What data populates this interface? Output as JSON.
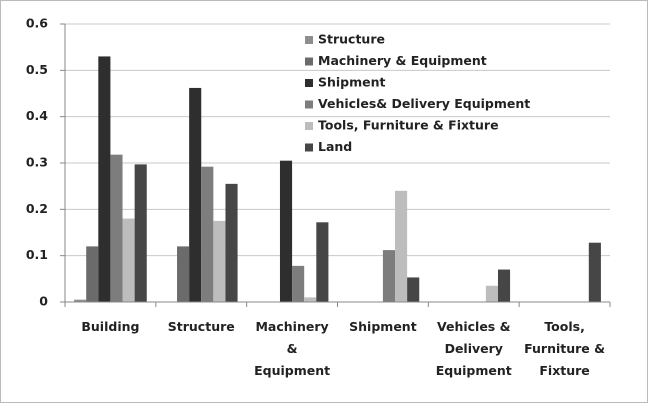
{
  "chart_data": {
    "type": "bar",
    "categories": [
      "Building",
      "Structure",
      "Machinery\n&\nEquipment",
      "Shipment",
      "Vehicles &\nDelivery\nEquipment",
      "Tools,\nFurniture &\nFixture"
    ],
    "series": [
      {
        "name": "Structure",
        "color": "#8e8e8e",
        "values": [
          0.005,
          0,
          0,
          0,
          0,
          0
        ]
      },
      {
        "name": "Machinery & Equipment",
        "color": "#6b6b6b",
        "values": [
          0.12,
          0.12,
          0,
          0,
          0,
          0
        ]
      },
      {
        "name": "Shipment",
        "color": "#2e2e2e",
        "values": [
          0.53,
          0.462,
          0.305,
          0,
          0,
          0
        ]
      },
      {
        "name": "Vehicles& Delivery Equipment",
        "color": "#7d7d7d",
        "values": [
          0.318,
          0.292,
          0.078,
          0.112,
          0,
          0
        ]
      },
      {
        "name": "Tools, Furniture & Fixture",
        "color": "#bdbdbd",
        "values": [
          0.18,
          0.175,
          0.01,
          0.24,
          0.035,
          0
        ]
      },
      {
        "name": "Land",
        "color": "#464646",
        "values": [
          0.297,
          0.255,
          0.172,
          0.053,
          0.07,
          0.128
        ]
      }
    ],
    "ylim": [
      0,
      0.6
    ],
    "yticks": [
      0,
      0.1,
      0.2,
      0.3,
      0.4,
      0.5,
      0.6
    ],
    "grid": true,
    "legend": "top-center"
  }
}
